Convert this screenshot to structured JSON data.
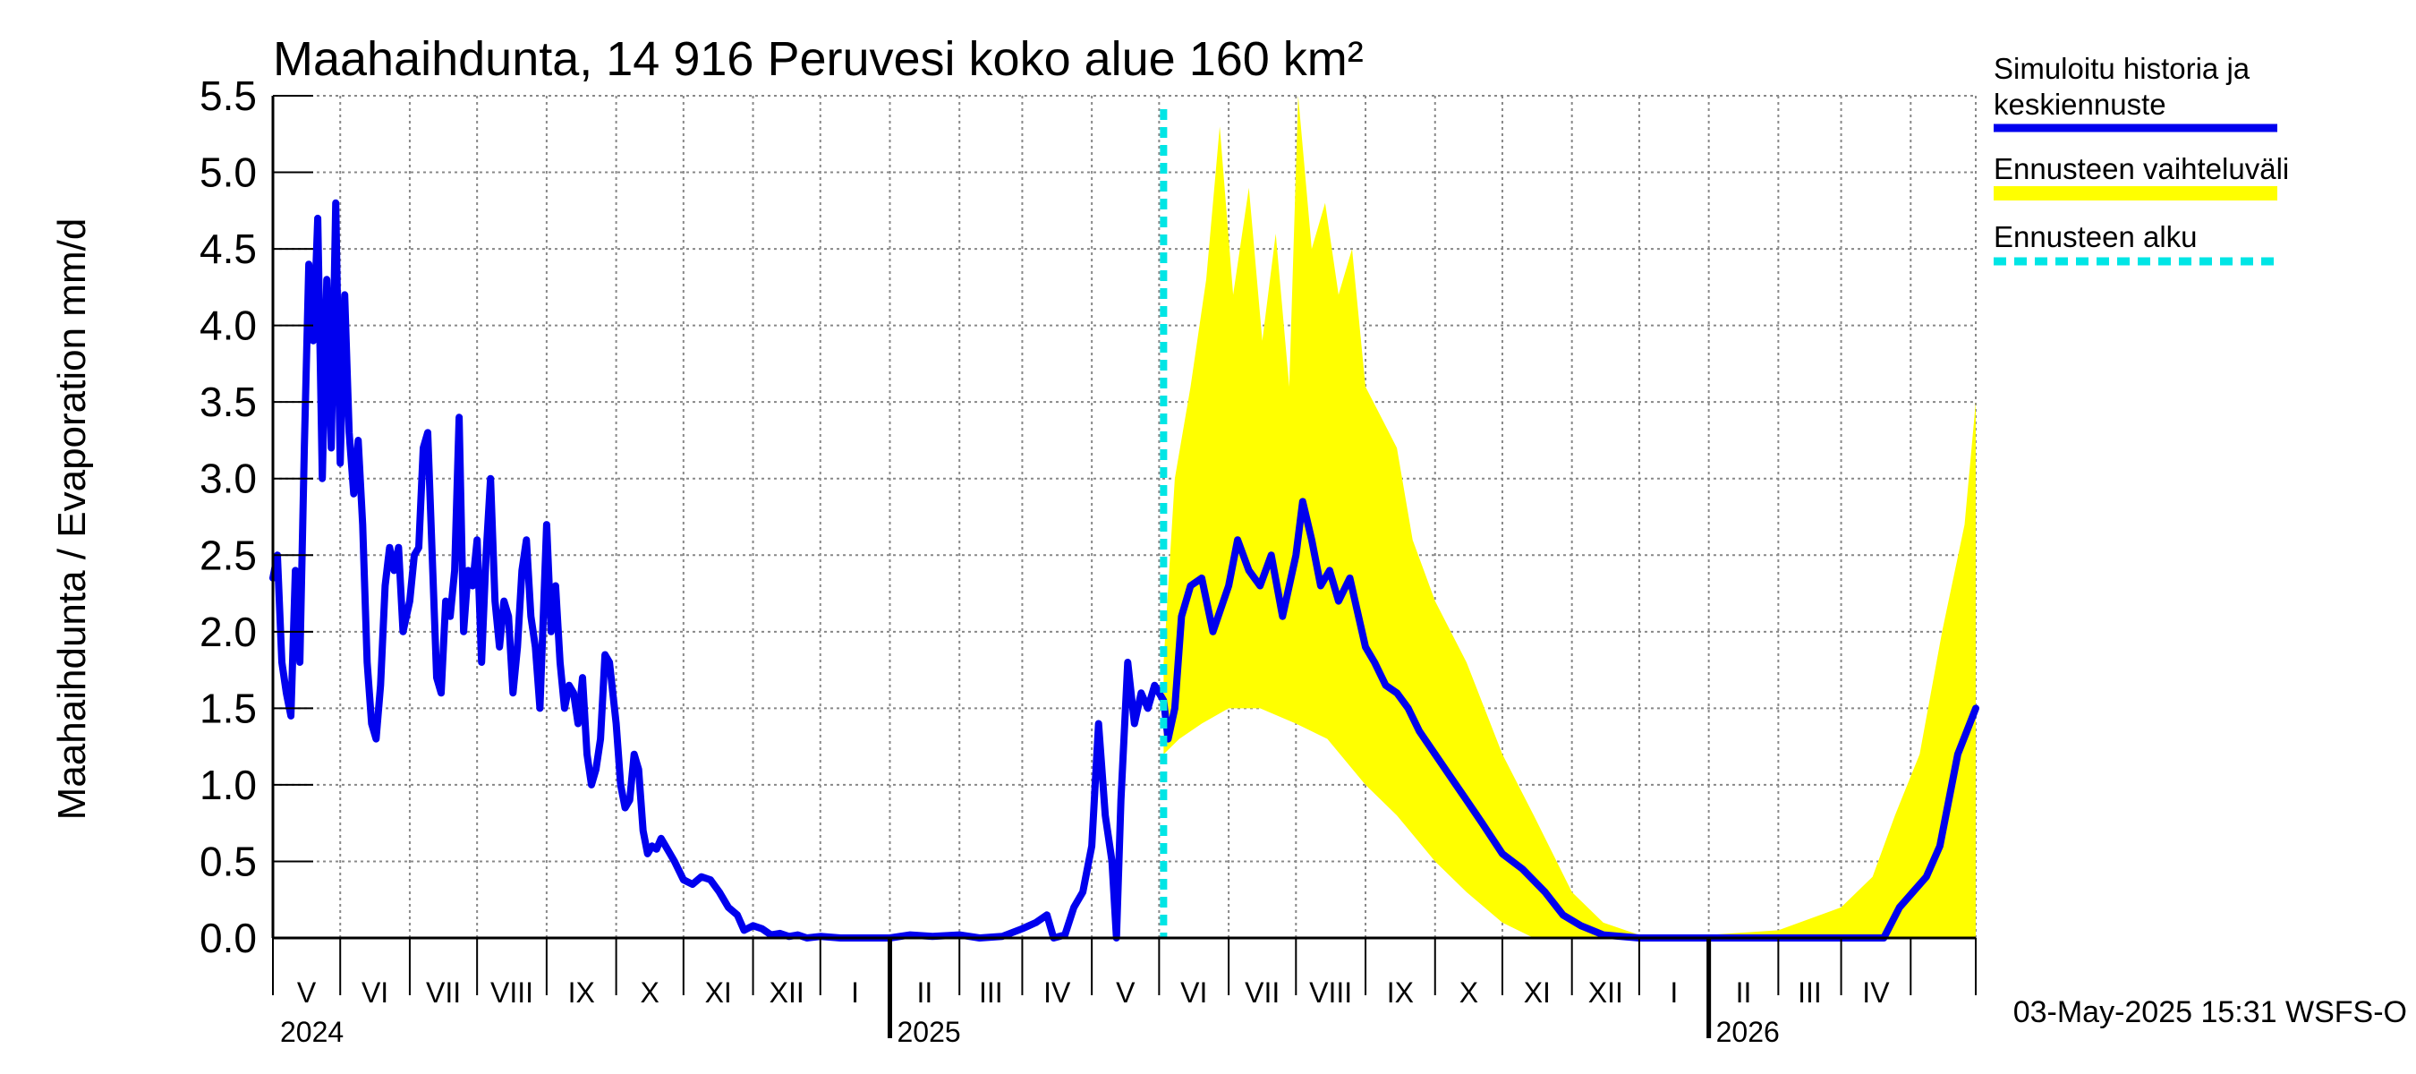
{
  "chart_data": {
    "type": "line",
    "title": "Maahaihdunta, 14 916 Peruvesi koko alue 160 km²",
    "ylabel": "Maahaihdunta / Evaporation   mm/d",
    "ylim": [
      0,
      5.5
    ],
    "y_ticks": [
      "0.0",
      "0.5",
      "1.0",
      "1.5",
      "2.0",
      "2.5",
      "3.0",
      "3.5",
      "4.0",
      "4.5",
      "5.0",
      "5.5"
    ],
    "x_range": [
      "2024-04-01",
      "2026-04-30"
    ],
    "grid": true,
    "legend_position": "right",
    "month_labels": [
      "V",
      "VI",
      "VII",
      "VIII",
      "IX",
      "X",
      "XI",
      "XII",
      "I",
      "II",
      "III",
      "IV",
      "V",
      "VI",
      "VII",
      "VIII",
      "IX",
      "X",
      "XI",
      "XII",
      "I",
      "II",
      "III",
      "IV"
    ],
    "year_labels": [
      {
        "date": "2024-04-01",
        "label": "2024"
      },
      {
        "date": "2025-01-01",
        "label": "2025"
      },
      {
        "date": "2026-01-01",
        "label": "2026"
      }
    ],
    "forecast_start": "2025-05-03",
    "legend": {
      "simulated_line1": "Simuloitu historia ja",
      "simulated_line2": "keskiennuste",
      "range": "Ennusteen vaihteluväli",
      "start": "Ennusteen alku"
    },
    "colors": {
      "simulated": "#0000ee",
      "range": "#ffff00",
      "start": "#00e5e5",
      "grid": "#888888"
    },
    "series": [
      {
        "name": "Simuloitu historia ja keskiennuste",
        "points": [
          [
            "2024-04-01",
            2.35
          ],
          [
            "2024-04-03",
            2.5
          ],
          [
            "2024-04-05",
            1.8
          ],
          [
            "2024-04-07",
            1.6
          ],
          [
            "2024-04-09",
            1.45
          ],
          [
            "2024-04-11",
            2.4
          ],
          [
            "2024-04-13",
            1.8
          ],
          [
            "2024-04-15",
            3.2
          ],
          [
            "2024-04-17",
            4.4
          ],
          [
            "2024-04-19",
            3.9
          ],
          [
            "2024-04-21",
            4.7
          ],
          [
            "2024-04-23",
            3.0
          ],
          [
            "2024-04-25",
            4.3
          ],
          [
            "2024-04-27",
            3.2
          ],
          [
            "2024-04-29",
            4.8
          ],
          [
            "2024-05-01",
            3.1
          ],
          [
            "2024-05-03",
            4.2
          ],
          [
            "2024-05-05",
            3.3
          ],
          [
            "2024-05-07",
            2.9
          ],
          [
            "2024-05-09",
            3.25
          ],
          [
            "2024-05-11",
            2.7
          ],
          [
            "2024-05-13",
            1.8
          ],
          [
            "2024-05-15",
            1.4
          ],
          [
            "2024-05-17",
            1.3
          ],
          [
            "2024-05-19",
            1.65
          ],
          [
            "2024-05-21",
            2.3
          ],
          [
            "2024-05-23",
            2.55
          ],
          [
            "2024-05-25",
            2.4
          ],
          [
            "2024-05-27",
            2.55
          ],
          [
            "2024-05-29",
            2.0
          ],
          [
            "2024-06-01",
            2.2
          ],
          [
            "2024-06-03",
            2.5
          ],
          [
            "2024-06-05",
            2.55
          ],
          [
            "2024-06-07",
            3.2
          ],
          [
            "2024-06-09",
            3.3
          ],
          [
            "2024-06-11",
            2.5
          ],
          [
            "2024-06-13",
            1.7
          ],
          [
            "2024-06-15",
            1.6
          ],
          [
            "2024-06-17",
            2.2
          ],
          [
            "2024-06-19",
            2.1
          ],
          [
            "2024-06-21",
            2.4
          ],
          [
            "2024-06-23",
            3.4
          ],
          [
            "2024-06-25",
            2.0
          ],
          [
            "2024-06-27",
            2.4
          ],
          [
            "2024-06-29",
            2.3
          ],
          [
            "2024-07-01",
            2.6
          ],
          [
            "2024-07-03",
            1.8
          ],
          [
            "2024-07-05",
            2.5
          ],
          [
            "2024-07-07",
            3.0
          ],
          [
            "2024-07-09",
            2.2
          ],
          [
            "2024-07-11",
            1.9
          ],
          [
            "2024-07-13",
            2.2
          ],
          [
            "2024-07-15",
            2.1
          ],
          [
            "2024-07-17",
            1.6
          ],
          [
            "2024-07-19",
            1.9
          ],
          [
            "2024-07-21",
            2.4
          ],
          [
            "2024-07-23",
            2.6
          ],
          [
            "2024-07-25",
            2.1
          ],
          [
            "2024-07-27",
            1.9
          ],
          [
            "2024-07-29",
            1.5
          ],
          [
            "2024-08-01",
            2.7
          ],
          [
            "2024-08-03",
            2.0
          ],
          [
            "2024-08-05",
            2.3
          ],
          [
            "2024-08-07",
            1.8
          ],
          [
            "2024-08-09",
            1.5
          ],
          [
            "2024-08-11",
            1.65
          ],
          [
            "2024-08-13",
            1.6
          ],
          [
            "2024-08-15",
            1.4
          ],
          [
            "2024-08-17",
            1.7
          ],
          [
            "2024-08-19",
            1.2
          ],
          [
            "2024-08-21",
            1.0
          ],
          [
            "2024-08-23",
            1.1
          ],
          [
            "2024-08-25",
            1.3
          ],
          [
            "2024-08-27",
            1.85
          ],
          [
            "2024-08-29",
            1.8
          ],
          [
            "2024-09-01",
            1.4
          ],
          [
            "2024-09-03",
            1.0
          ],
          [
            "2024-09-05",
            0.85
          ],
          [
            "2024-09-07",
            0.9
          ],
          [
            "2024-09-09",
            1.2
          ],
          [
            "2024-09-11",
            1.1
          ],
          [
            "2024-09-13",
            0.7
          ],
          [
            "2024-09-15",
            0.55
          ],
          [
            "2024-09-17",
            0.6
          ],
          [
            "2024-09-19",
            0.58
          ],
          [
            "2024-09-21",
            0.65
          ],
          [
            "2024-09-23",
            0.6
          ],
          [
            "2024-09-25",
            0.55
          ],
          [
            "2024-09-27",
            0.5
          ],
          [
            "2024-10-01",
            0.38
          ],
          [
            "2024-10-05",
            0.35
          ],
          [
            "2024-10-09",
            0.4
          ],
          [
            "2024-10-13",
            0.38
          ],
          [
            "2024-10-17",
            0.3
          ],
          [
            "2024-10-21",
            0.2
          ],
          [
            "2024-10-25",
            0.15
          ],
          [
            "2024-10-28",
            0.05
          ],
          [
            "2024-11-01",
            0.08
          ],
          [
            "2024-11-05",
            0.06
          ],
          [
            "2024-11-09",
            0.02
          ],
          [
            "2024-11-13",
            0.03
          ],
          [
            "2024-11-17",
            0.01
          ],
          [
            "2024-11-21",
            0.02
          ],
          [
            "2024-11-25",
            0.0
          ],
          [
            "2024-12-01",
            0.01
          ],
          [
            "2024-12-10",
            0.0
          ],
          [
            "2024-12-20",
            0.0
          ],
          [
            "2025-01-01",
            0.0
          ],
          [
            "2025-01-10",
            0.02
          ],
          [
            "2025-01-20",
            0.01
          ],
          [
            "2025-02-01",
            0.02
          ],
          [
            "2025-02-10",
            0.0
          ],
          [
            "2025-02-20",
            0.01
          ],
          [
            "2025-03-01",
            0.06
          ],
          [
            "2025-03-07",
            0.1
          ],
          [
            "2025-03-12",
            0.15
          ],
          [
            "2025-03-15",
            0.0
          ],
          [
            "2025-03-20",
            0.02
          ],
          [
            "2025-03-24",
            0.2
          ],
          [
            "2025-03-28",
            0.3
          ],
          [
            "2025-04-01",
            0.6
          ],
          [
            "2025-04-04",
            1.4
          ],
          [
            "2025-04-07",
            0.8
          ],
          [
            "2025-04-10",
            0.5
          ],
          [
            "2025-04-12",
            0.0
          ],
          [
            "2025-04-14",
            0.9
          ],
          [
            "2025-04-17",
            1.8
          ],
          [
            "2025-04-20",
            1.4
          ],
          [
            "2025-04-23",
            1.6
          ],
          [
            "2025-04-26",
            1.5
          ],
          [
            "2025-04-29",
            1.65
          ],
          [
            "2025-05-03",
            1.55
          ],
          [
            "2025-05-05",
            1.3
          ],
          [
            "2025-05-08",
            1.5
          ],
          [
            "2025-05-11",
            2.1
          ],
          [
            "2025-05-15",
            2.3
          ],
          [
            "2025-05-20",
            2.35
          ],
          [
            "2025-05-25",
            2.0
          ],
          [
            "2025-06-01",
            2.3
          ],
          [
            "2025-06-05",
            2.6
          ],
          [
            "2025-06-10",
            2.4
          ],
          [
            "2025-06-15",
            2.3
          ],
          [
            "2025-06-20",
            2.5
          ],
          [
            "2025-06-25",
            2.1
          ],
          [
            "2025-07-01",
            2.5
          ],
          [
            "2025-07-04",
            2.85
          ],
          [
            "2025-07-08",
            2.6
          ],
          [
            "2025-07-12",
            2.3
          ],
          [
            "2025-07-16",
            2.4
          ],
          [
            "2025-07-20",
            2.2
          ],
          [
            "2025-07-25",
            2.35
          ],
          [
            "2025-08-01",
            1.9
          ],
          [
            "2025-08-05",
            1.8
          ],
          [
            "2025-08-10",
            1.65
          ],
          [
            "2025-08-15",
            1.6
          ],
          [
            "2025-08-20",
            1.5
          ],
          [
            "2025-08-25",
            1.35
          ],
          [
            "2025-09-01",
            1.2
          ],
          [
            "2025-09-08",
            1.05
          ],
          [
            "2025-09-15",
            0.9
          ],
          [
            "2025-09-22",
            0.75
          ],
          [
            "2025-10-01",
            0.55
          ],
          [
            "2025-10-10",
            0.45
          ],
          [
            "2025-10-20",
            0.3
          ],
          [
            "2025-10-28",
            0.15
          ],
          [
            "2025-11-05",
            0.08
          ],
          [
            "2025-11-15",
            0.02
          ],
          [
            "2025-12-01",
            0.0
          ],
          [
            "2026-01-01",
            0.0
          ],
          [
            "2026-02-01",
            0.0
          ],
          [
            "2026-03-01",
            0.0
          ],
          [
            "2026-03-20",
            0.0
          ],
          [
            "2026-03-27",
            0.2
          ],
          [
            "2026-04-02",
            0.3
          ],
          [
            "2026-04-08",
            0.4
          ],
          [
            "2026-04-14",
            0.6
          ],
          [
            "2026-04-18",
            0.9
          ],
          [
            "2026-04-22",
            1.2
          ],
          [
            "2026-04-26",
            1.35
          ],
          [
            "2026-04-30",
            1.5
          ]
        ]
      },
      {
        "name": "Ennusteen vaihteluväli",
        "upper": [
          [
            "2025-05-03",
            1.8
          ],
          [
            "2025-05-08",
            3.0
          ],
          [
            "2025-05-15",
            3.6
          ],
          [
            "2025-05-22",
            4.3
          ],
          [
            "2025-05-28",
            5.3
          ],
          [
            "2025-06-03",
            4.2
          ],
          [
            "2025-06-10",
            4.9
          ],
          [
            "2025-06-16",
            3.9
          ],
          [
            "2025-06-22",
            4.6
          ],
          [
            "2025-06-28",
            3.6
          ],
          [
            "2025-07-02",
            5.5
          ],
          [
            "2025-07-08",
            4.5
          ],
          [
            "2025-07-14",
            4.8
          ],
          [
            "2025-07-20",
            4.2
          ],
          [
            "2025-07-26",
            4.5
          ],
          [
            "2025-08-01",
            3.6
          ],
          [
            "2025-08-08",
            3.4
          ],
          [
            "2025-08-15",
            3.2
          ],
          [
            "2025-08-22",
            2.6
          ],
          [
            "2025-09-01",
            2.2
          ],
          [
            "2025-09-15",
            1.8
          ],
          [
            "2025-10-01",
            1.2
          ],
          [
            "2025-10-15",
            0.8
          ],
          [
            "2025-11-01",
            0.3
          ],
          [
            "2025-11-15",
            0.1
          ],
          [
            "2025-12-01",
            0.02
          ],
          [
            "2026-01-01",
            0.02
          ],
          [
            "2026-02-01",
            0.05
          ],
          [
            "2026-03-01",
            0.2
          ],
          [
            "2026-03-15",
            0.4
          ],
          [
            "2026-03-25",
            0.8
          ],
          [
            "2026-04-05",
            1.2
          ],
          [
            "2026-04-15",
            2.0
          ],
          [
            "2026-04-25",
            2.7
          ],
          [
            "2026-04-30",
            3.5
          ]
        ],
        "lower": [
          [
            "2025-05-03",
            1.2
          ],
          [
            "2025-05-10",
            1.3
          ],
          [
            "2025-05-20",
            1.4
          ],
          [
            "2025-06-01",
            1.5
          ],
          [
            "2025-06-15",
            1.5
          ],
          [
            "2025-07-01",
            1.4
          ],
          [
            "2025-07-15",
            1.3
          ],
          [
            "2025-08-01",
            1.0
          ],
          [
            "2025-08-15",
            0.8
          ],
          [
            "2025-09-01",
            0.5
          ],
          [
            "2025-09-15",
            0.3
          ],
          [
            "2025-10-01",
            0.1
          ],
          [
            "2025-10-15",
            0.0
          ],
          [
            "2026-04-30",
            0.0
          ]
        ]
      }
    ]
  },
  "footer": {
    "timestamp": "03-May-2025 15:31 WSFS-O"
  }
}
